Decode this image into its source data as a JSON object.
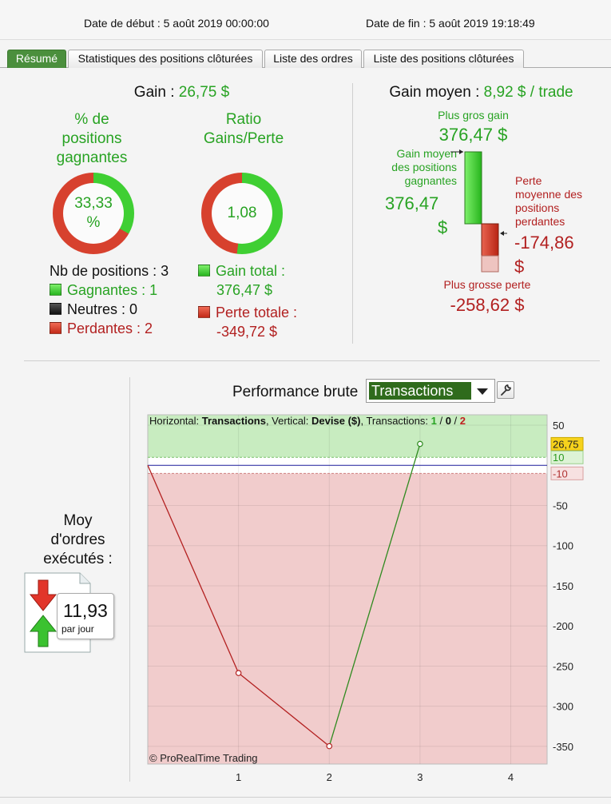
{
  "header": {
    "start_label": "Date de début : 5 août 2019 00:00:00",
    "end_label": "Date de fin : 5 août 2019 19:18:49"
  },
  "tabs": [
    {
      "label": "Résumé",
      "active": true
    },
    {
      "label": "Statistiques des positions clôturées",
      "active": false
    },
    {
      "label": "Liste des ordres",
      "active": false
    },
    {
      "label": "Liste des positions clôturées",
      "active": false
    }
  ],
  "summary": {
    "gain_label": "Gain :",
    "gain_value": "26,75 $",
    "win_pct_title_1": "% de",
    "win_pct_title_2": "positions",
    "win_pct_title_3": "gagnantes",
    "win_pct_value_1": "33,33",
    "win_pct_value_2": "%",
    "win_fraction": 0.3333,
    "ratio_title_1": "Ratio",
    "ratio_title_2": "Gains/Perte",
    "ratio_value": "1,08",
    "ratio_green_fraction": 0.52,
    "nb_positions": "Nb de positions : 3",
    "winners": "Gagnantes : 1",
    "neutral": "Neutres : 0",
    "losers": "Perdantes : 2",
    "total_gain_label": "Gain total :",
    "total_gain_value": "376,47 $",
    "total_loss_label": "Perte totale :",
    "total_loss_value": "-349,72 $"
  },
  "avg_gain": {
    "title_label": "Gain moyen :",
    "title_value": "8,92 $ / trade",
    "biggest_gain_label": "Plus gros gain",
    "biggest_gain_value": "376,47 $",
    "avg_win_label_1": "Gain moyen",
    "avg_win_label_2": "des positions",
    "avg_win_label_3": "gagnantes",
    "avg_win_value_1": "376,47",
    "avg_win_value_2": "$",
    "avg_loss_label_1": "Perte",
    "avg_loss_label_2": "moyenne des",
    "avg_loss_label_3": "positions",
    "avg_loss_label_4": "perdantes",
    "avg_loss_value_1": "-174,86",
    "avg_loss_value_2": "$",
    "biggest_loss_label": "Plus grosse perte",
    "biggest_loss_value": "-258,62 $"
  },
  "orders": {
    "label_1": "Moy",
    "label_2": "d'ordres",
    "label_3": "exécutés :",
    "value": "11,93",
    "unit": "par jour"
  },
  "perf": {
    "title": "Performance brute",
    "select_value": "Transactions",
    "info_prefix": "Horizontal: ",
    "info_h": "Transactions",
    "info_mid": ", Vertical: ",
    "info_v": "Devise ($)",
    "info_tx": ", Transactions: ",
    "info_w": "1",
    "info_sep1": " / ",
    "info_n": "0",
    "info_sep2": " / ",
    "info_l": "2",
    "copyright": "© ProRealTime Trading",
    "current_badge": "26,75",
    "upper_badge": "10",
    "lower_badge": "-10"
  },
  "chart_data": {
    "type": "line",
    "x": [
      0,
      1,
      2,
      3
    ],
    "values": [
      0,
      -258.62,
      -349.72,
      26.75
    ],
    "xticks": [
      1,
      2,
      3,
      4
    ],
    "yticks": [
      50,
      -50,
      -100,
      -150,
      -200,
      -250,
      -300,
      -350
    ],
    "xlim": [
      0,
      4.4
    ],
    "ylim": [
      -372,
      63
    ],
    "zero_band": [
      -10,
      10
    ],
    "colors": {
      "up": "#2f8a1f",
      "down": "#b32020",
      "positive_zone": "#c8ecc0",
      "negative_zone": "#f1cccc",
      "baseline": "#1c1c9a"
    }
  }
}
